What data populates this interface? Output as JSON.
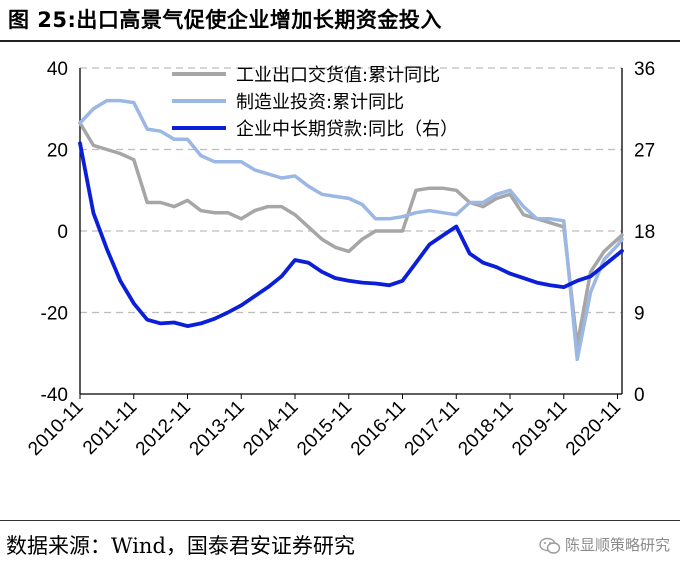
{
  "header": {
    "title": "图 25:出口高景气促使企业增加长期资金投入"
  },
  "footer": {
    "source": "数据来源：Wind，国泰君安证券研究",
    "watermark": "陈显顺策略研究"
  },
  "chart_data": {
    "type": "line",
    "x_tick_labels": [
      "2010-11",
      "2011-11",
      "2012-11",
      "2013-11",
      "2014-11",
      "2015-11",
      "2016-11",
      "2017-11",
      "2018-11",
      "2019-11",
      "2020-11"
    ],
    "x_range": [
      "2010-11",
      "2020-12"
    ],
    "y_left": {
      "range": [
        -40,
        40
      ],
      "ticks": [
        40,
        20,
        0,
        -20,
        -40
      ],
      "grid": "dashed horizontal"
    },
    "y_right": {
      "range": [
        0,
        36
      ],
      "ticks": [
        36,
        27,
        18,
        9,
        0
      ]
    },
    "legend": {
      "placement": "top-center",
      "entries": [
        "工业出口交货值:累计同比",
        "制造业投资:累计同比",
        "企业中长期贷款:同比（右）"
      ]
    },
    "colors": {
      "export": "#a6a6a6",
      "investment": "#9bb7e4",
      "loans": "#0b1fd8"
    },
    "series": [
      {
        "name": "工业出口交货值:累计同比",
        "axis": "left",
        "x": [
          "2010-11",
          "2011-02",
          "2011-05",
          "2011-08",
          "2011-11",
          "2012-02",
          "2012-05",
          "2012-08",
          "2012-11",
          "2013-02",
          "2013-05",
          "2013-08",
          "2013-11",
          "2014-02",
          "2014-05",
          "2014-08",
          "2014-11",
          "2015-02",
          "2015-05",
          "2015-08",
          "2015-11",
          "2016-02",
          "2016-05",
          "2016-08",
          "2016-11",
          "2017-02",
          "2017-05",
          "2017-08",
          "2017-11",
          "2018-02",
          "2018-05",
          "2018-08",
          "2018-11",
          "2019-02",
          "2019-05",
          "2019-08",
          "2019-11",
          "2020-02",
          "2020-05",
          "2020-08",
          "2020-11",
          "2020-12"
        ],
        "values": [
          26.5,
          21,
          20,
          19,
          17.5,
          7,
          7,
          6,
          7.5,
          5,
          4.5,
          4.5,
          3,
          5,
          6,
          6,
          4,
          1,
          -2,
          -4,
          -5,
          -2,
          0,
          0,
          0,
          10,
          10.5,
          10.5,
          10,
          7,
          6,
          8,
          9,
          4,
          3,
          2,
          1,
          -28,
          -10,
          -5,
          -2,
          -1
        ]
      },
      {
        "name": "制造业投资:累计同比",
        "axis": "left",
        "x": [
          "2010-11",
          "2011-02",
          "2011-05",
          "2011-08",
          "2011-11",
          "2012-02",
          "2012-05",
          "2012-08",
          "2012-11",
          "2013-02",
          "2013-05",
          "2013-08",
          "2013-11",
          "2014-02",
          "2014-05",
          "2014-08",
          "2014-11",
          "2015-02",
          "2015-05",
          "2015-08",
          "2015-11",
          "2016-02",
          "2016-05",
          "2016-08",
          "2016-11",
          "2017-02",
          "2017-05",
          "2017-08",
          "2017-11",
          "2018-02",
          "2018-05",
          "2018-08",
          "2018-11",
          "2019-02",
          "2019-05",
          "2019-08",
          "2019-11",
          "2020-02",
          "2020-05",
          "2020-08",
          "2020-11",
          "2020-12"
        ],
        "values": [
          26.5,
          30,
          32,
          32,
          31.5,
          25,
          24.5,
          22.5,
          22.5,
          18.5,
          17,
          17,
          17,
          15,
          14,
          13,
          13.5,
          11,
          9,
          8.5,
          8,
          6.5,
          3,
          3,
          3.5,
          4.5,
          5,
          4.5,
          4,
          7,
          7,
          9,
          10,
          6,
          3,
          3,
          2.5,
          -31.5,
          -15,
          -7,
          -3.5,
          -2
        ]
      },
      {
        "name": "企业中长期贷款:同比（右）",
        "axis": "right",
        "x": [
          "2010-11",
          "2011-02",
          "2011-05",
          "2011-08",
          "2011-11",
          "2012-02",
          "2012-05",
          "2012-08",
          "2012-11",
          "2013-02",
          "2013-05",
          "2013-08",
          "2013-11",
          "2014-02",
          "2014-05",
          "2014-08",
          "2014-11",
          "2015-02",
          "2015-05",
          "2015-08",
          "2015-11",
          "2016-02",
          "2016-05",
          "2016-08",
          "2016-11",
          "2017-02",
          "2017-05",
          "2017-08",
          "2017-11",
          "2018-02",
          "2018-05",
          "2018-08",
          "2018-11",
          "2019-02",
          "2019-05",
          "2019-08",
          "2019-11",
          "2020-02",
          "2020-05",
          "2020-08",
          "2020-11",
          "2020-12"
        ],
        "values": [
          27.7,
          20,
          16,
          12.5,
          10,
          8.2,
          7.8,
          7.9,
          7.5,
          7.8,
          8.3,
          9,
          9.8,
          10.8,
          11.8,
          13,
          14.8,
          14.5,
          13.5,
          12.8,
          12.5,
          12.3,
          12.2,
          12,
          12.5,
          14.5,
          16.5,
          17.5,
          18.5,
          15.5,
          14.5,
          14,
          13.3,
          12.8,
          12.3,
          12,
          11.8,
          12.5,
          13,
          14.2,
          15.4,
          15.8
        ]
      }
    ]
  }
}
